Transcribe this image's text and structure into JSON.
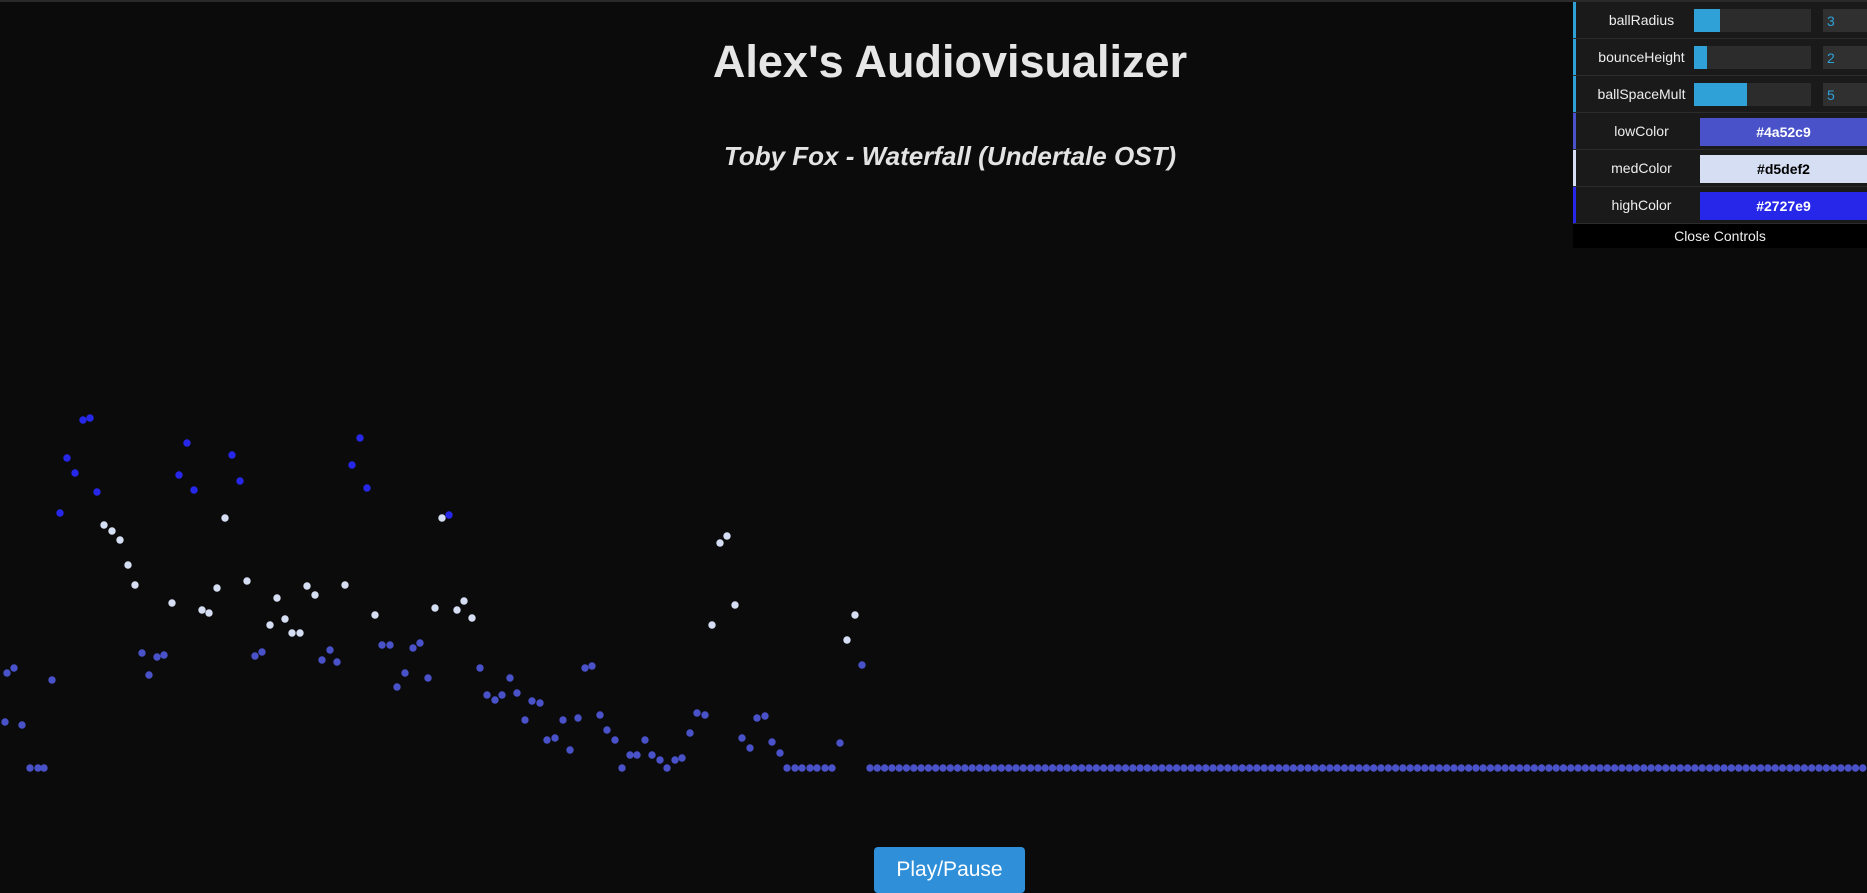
{
  "page": {
    "title": "Alex's Audiovisualizer",
    "song": "Toby Fox - Waterfall (Undertale OST)",
    "play_label": "Play/Pause"
  },
  "controls": {
    "accent_color": "#2fa1d6",
    "sliders": [
      {
        "name": "ballRadius",
        "value": "3",
        "fill": 0.22
      },
      {
        "name": "bounceHeight",
        "value": "2",
        "fill": 0.11
      },
      {
        "name": "ballSpaceMult",
        "value": "5",
        "fill": 0.45
      }
    ],
    "colors": [
      {
        "name": "lowColor",
        "value": "#4a52c9",
        "text_color": "#ffffff"
      },
      {
        "name": "medColor",
        "value": "#d5def2",
        "text_color": "#000000"
      },
      {
        "name": "highColor",
        "value": "#2727e9",
        "text_color": "#ffffff"
      }
    ],
    "close_label": "Close Controls"
  },
  "visualizer": {
    "low_color": "#4a52c9",
    "med_color": "#d5def2",
    "high_color": "#2727e9"
  }
}
